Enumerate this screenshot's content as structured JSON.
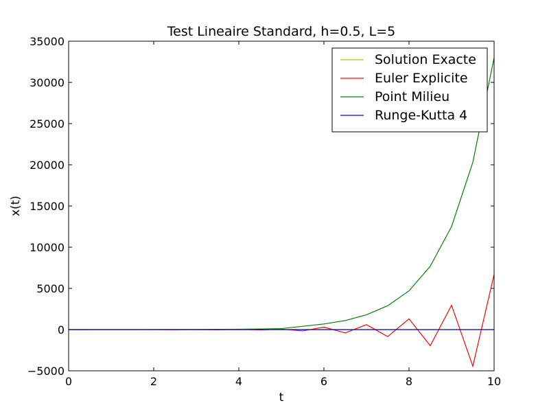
{
  "chart_data": {
    "type": "line",
    "title": "Test Lineaire Standard, h=0.5, L=5",
    "xlabel": "t",
    "ylabel": "x(t)",
    "xlim": [
      0,
      10
    ],
    "ylim": [
      -5000,
      35000
    ],
    "xticks": [
      "0",
      "2",
      "4",
      "6",
      "8",
      "10"
    ],
    "yticks": [
      "−5000",
      "0",
      "5000",
      "10000",
      "15000",
      "20000",
      "25000",
      "30000",
      "35000"
    ],
    "grid": false,
    "legend_position": "top-right",
    "x": [
      0,
      0.5,
      1,
      1.5,
      2,
      2.5,
      3,
      3.5,
      4,
      4.5,
      5,
      5.5,
      6,
      6.5,
      7,
      7.5,
      8,
      8.5,
      9,
      9.5,
      10
    ],
    "series": [
      {
        "name": "Solution Exacte",
        "color": "#bfbf00",
        "values": [
          1,
          0.08,
          0.007,
          0.0006,
          0,
          0,
          0,
          0,
          0,
          0,
          0,
          0,
          0,
          0,
          0,
          0,
          0,
          0,
          0,
          0,
          0
        ]
      },
      {
        "name": "Euler Explicite",
        "color": "#ff0000",
        "values": [
          1,
          -1.5,
          2.25,
          -3.4,
          5.1,
          -7.6,
          11,
          -17,
          26,
          -38,
          58,
          -160,
          300,
          -400,
          600,
          -850,
          1300,
          -1950,
          2950,
          -4450,
          6700
        ]
      },
      {
        "name": "Point Milieu",
        "color": "#008000",
        "values": [
          1,
          3,
          4,
          6,
          9,
          14,
          20,
          31,
          46,
          70,
          120,
          400,
          680,
          1100,
          1800,
          2900,
          4700,
          7700,
          12500,
          20300,
          33000
        ]
      },
      {
        "name": "Runge-Kutta 4",
        "color": "#0000ff",
        "values": [
          1,
          0.3,
          0.08,
          0.02,
          0,
          0,
          0,
          0,
          0,
          0,
          0,
          0,
          0,
          0,
          0,
          0,
          0,
          0,
          0,
          0,
          0
        ]
      }
    ]
  }
}
